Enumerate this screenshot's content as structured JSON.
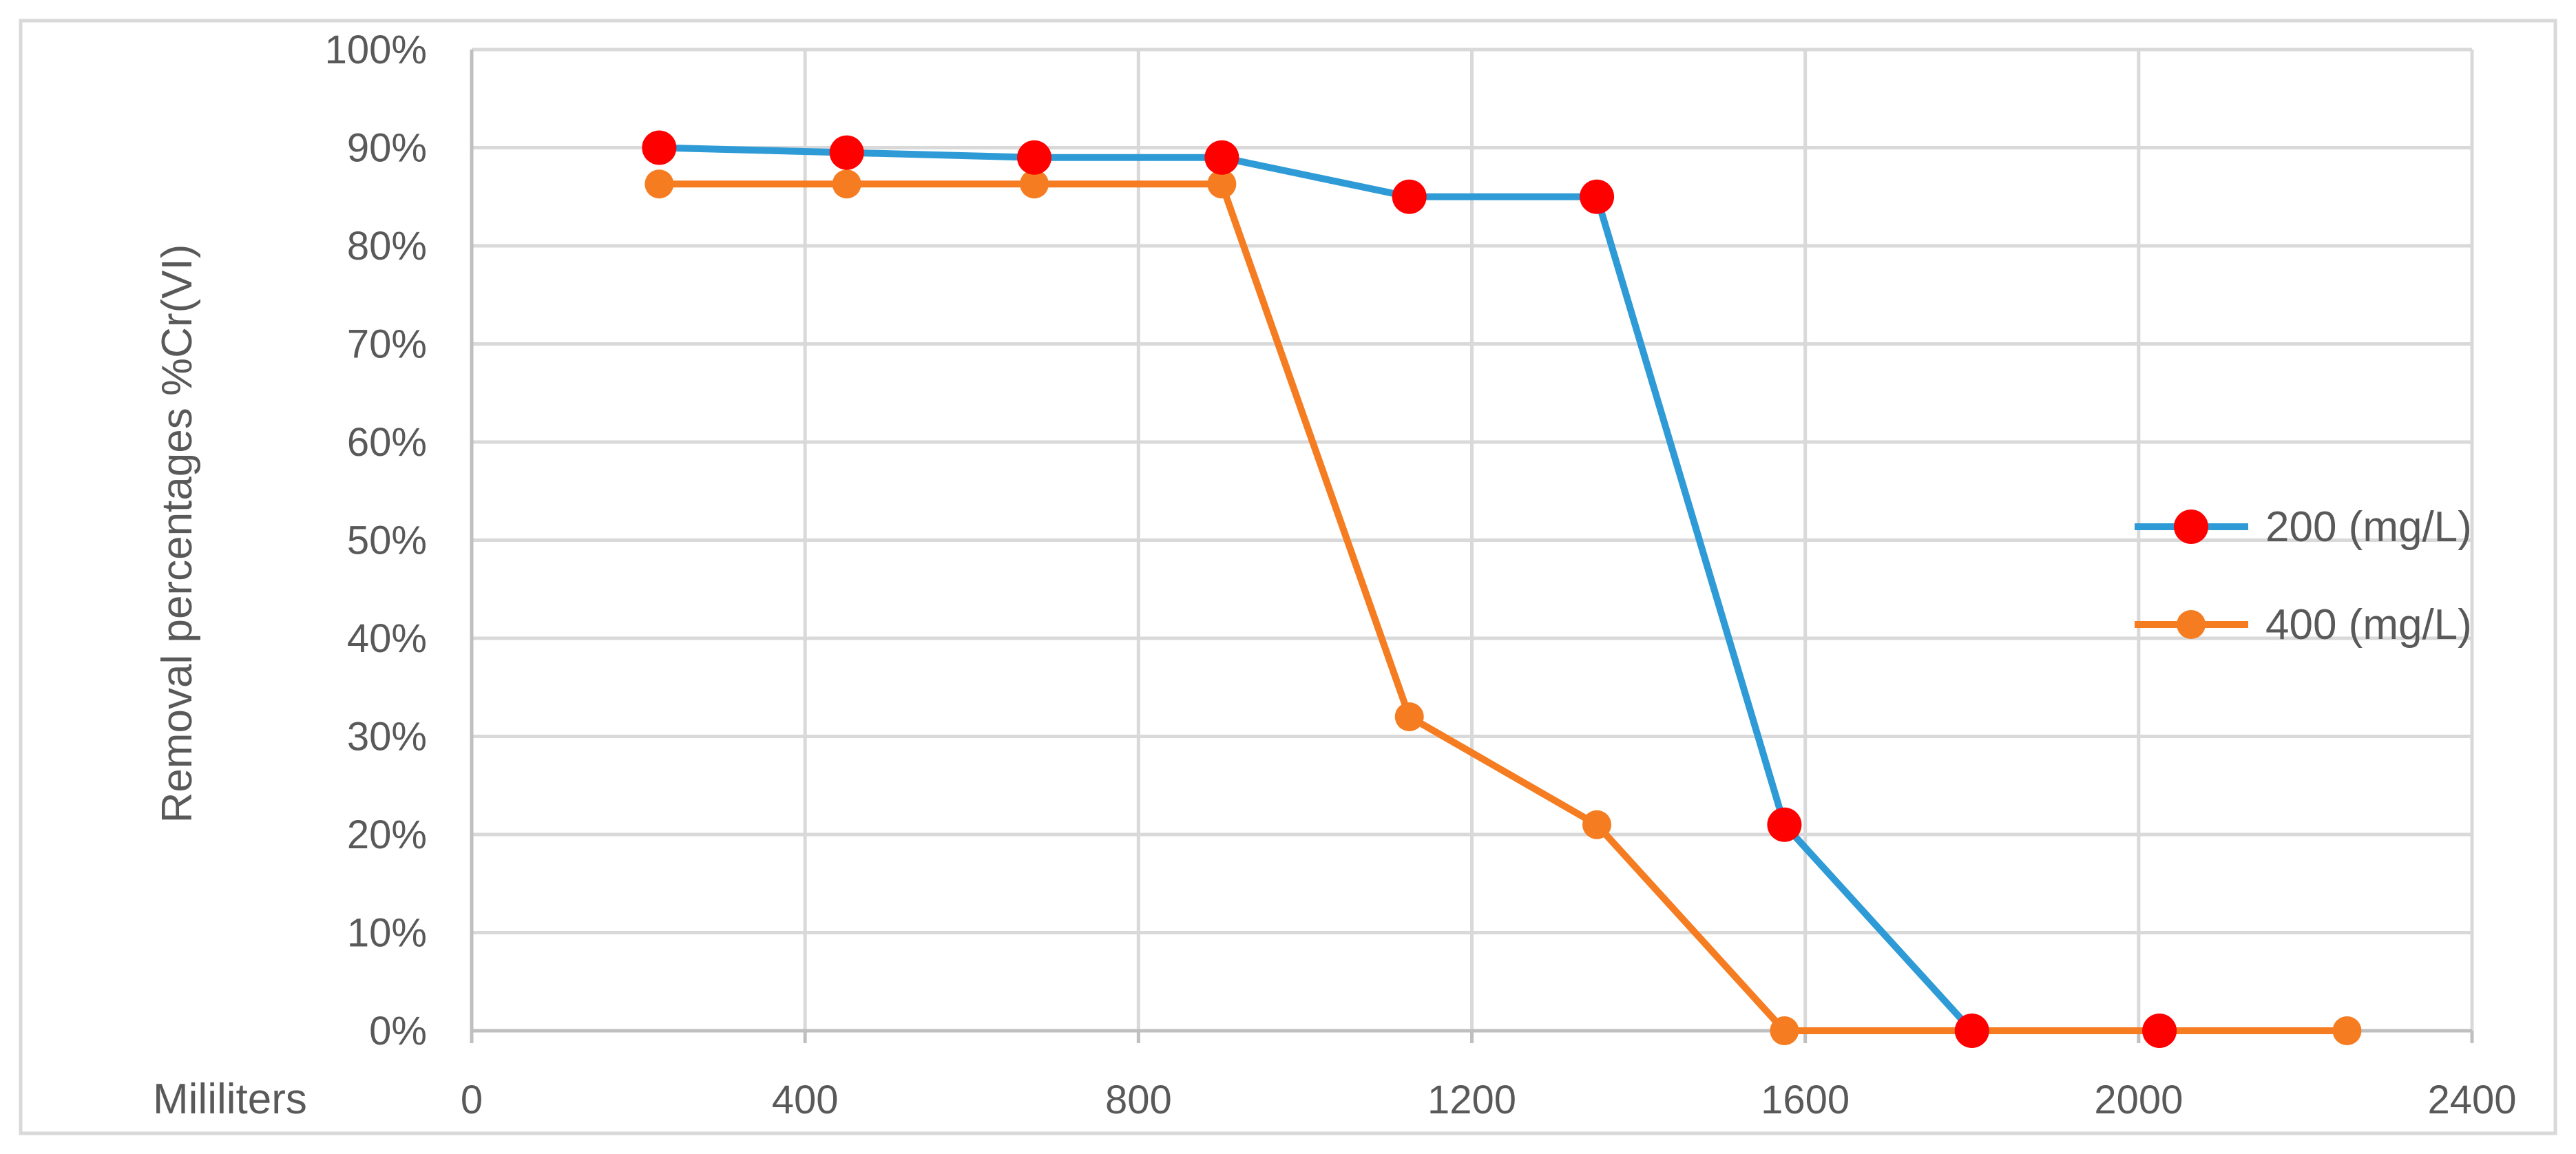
{
  "chart_data": {
    "type": "line",
    "xlabel": "Mililiters",
    "ylabel": "Removal percentages %Cr(VI)",
    "xlim": [
      0,
      2400
    ],
    "ylim": [
      0,
      100
    ],
    "x_ticks": [
      0,
      400,
      800,
      1200,
      1600,
      2000,
      2400
    ],
    "y_ticks": [
      0,
      10,
      20,
      30,
      40,
      50,
      60,
      70,
      80,
      90,
      100
    ],
    "y_tick_labels": [
      "0%",
      "10%",
      "20%",
      "30%",
      "40%",
      "50%",
      "60%",
      "70%",
      "80%",
      "90%",
      "100%"
    ],
    "grid": true,
    "legend_position": "right",
    "series": [
      {
        "name": "200 (mg/L)",
        "line_color": "#2e9bd6",
        "marker_color": "#ff0000",
        "marker": "large-circle",
        "x": [
          225,
          450,
          675,
          900,
          1125,
          1350,
          1575,
          1800,
          2025
        ],
        "y": [
          90,
          89.5,
          89,
          89,
          85,
          85,
          21,
          0,
          0
        ]
      },
      {
        "name": "400 (mg/L)",
        "line_color": "#f57c20",
        "marker_color": "#f57c20",
        "marker": "circle",
        "x": [
          225,
          450,
          675,
          900,
          1125,
          1350,
          1575,
          1800,
          2025,
          2250
        ],
        "y": [
          86.3,
          86.3,
          86.3,
          86.3,
          32,
          21,
          0,
          0,
          0,
          0
        ]
      }
    ]
  }
}
